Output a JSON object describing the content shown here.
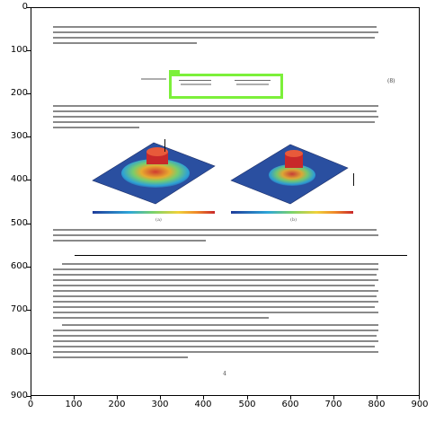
{
  "axes": {
    "y_ticks": [
      "0",
      "100",
      "200",
      "300",
      "400",
      "500",
      "600",
      "700",
      "800",
      "900"
    ],
    "x_ticks": [
      "0",
      "100",
      "200",
      "300",
      "400",
      "500",
      "600",
      "700",
      "800",
      "900"
    ]
  },
  "document": {
    "equation_number": "(8)",
    "figure_labels": [
      "(a)",
      "(b)"
    ],
    "page_number": "4"
  },
  "colors": {
    "highlight": "#7cf03a",
    "surface_base": "#2a4fa0",
    "surface_peak": "#d83a2a"
  }
}
